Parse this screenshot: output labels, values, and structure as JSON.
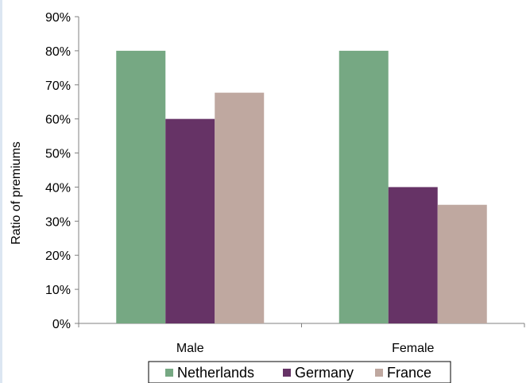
{
  "chart_data": {
    "type": "bar",
    "title": "",
    "xlabel": "",
    "ylabel": "Ratio of premiums",
    "ylim": [
      0,
      90
    ],
    "yticks": [
      "0%",
      "10%",
      "20%",
      "30%",
      "40%",
      "50%",
      "60%",
      "70%",
      "80%",
      "90%"
    ],
    "categories": [
      "Male",
      "Female"
    ],
    "series": [
      {
        "name": "Netherlands",
        "color": "#76a883",
        "values": [
          80,
          80
        ]
      },
      {
        "name": "Germany",
        "color": "#663366",
        "values": [
          60,
          40
        ]
      },
      {
        "name": "France",
        "color": "#bfa8a0",
        "values": [
          67.7,
          34.8
        ]
      }
    ],
    "grid": false,
    "legend_position": "bottom"
  }
}
